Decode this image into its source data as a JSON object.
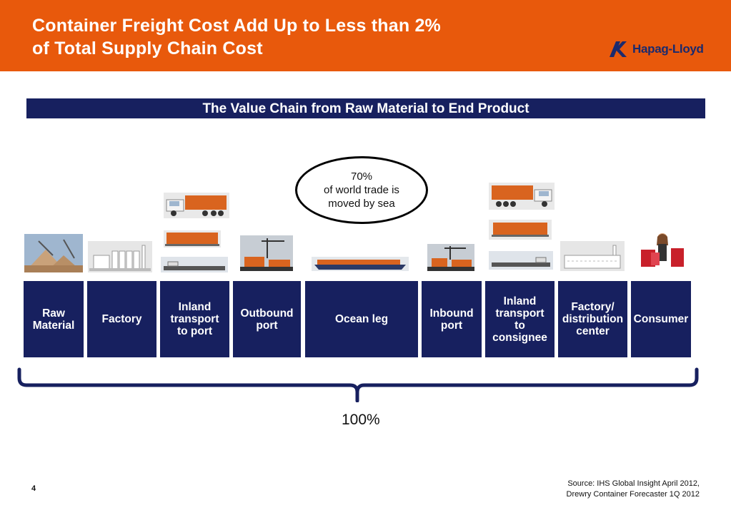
{
  "header": {
    "title_line1": "Container Freight Cost Add Up to Less than 2%",
    "title_line2": "of Total Supply Chain Cost",
    "logo_text": "Hapag-Lloyd"
  },
  "banner": "The Value Chain from Raw Material to End Product",
  "callout": {
    "line1": "70%",
    "line2": "of world trade is",
    "line3": "moved by sea"
  },
  "chain": [
    {
      "label": "Raw\nMaterial"
    },
    {
      "label": "Factory"
    },
    {
      "label": "Inland\ntransport\nto port"
    },
    {
      "label": "Outbound\nport"
    },
    {
      "label": "Ocean leg"
    },
    {
      "label": "Inbound\nport"
    },
    {
      "label": "Inland\ntransport\nto\nconsignee"
    },
    {
      "label": "Factory/\ndistribution\ncenter"
    },
    {
      "label": "Consumer"
    }
  ],
  "total": "100%",
  "page_number": "4",
  "source": {
    "line1": "Source: IHS Global Insight April 2012,",
    "line2": "Drewry Container Forecaster 1Q 2012"
  },
  "colors": {
    "header": "#e8590c",
    "navy": "#17205f",
    "container_orange": "#d9641f"
  }
}
